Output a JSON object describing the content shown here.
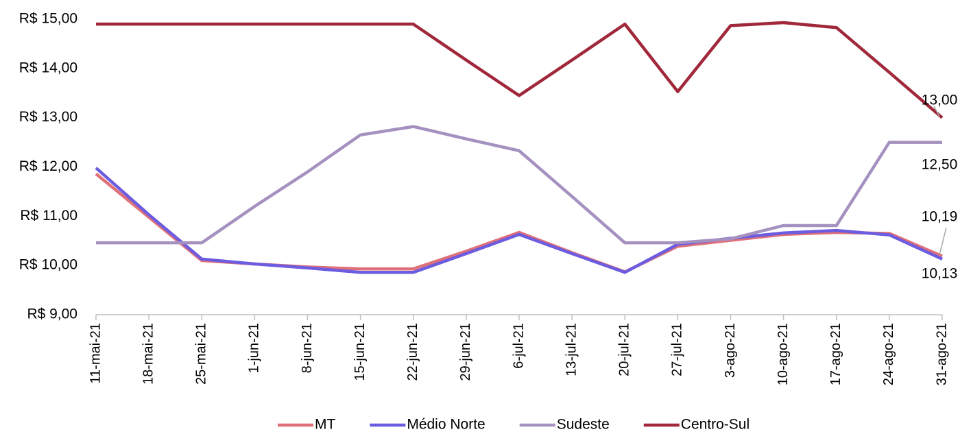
{
  "chart_data": {
    "type": "line",
    "categories": [
      "11-mai-21",
      "18-mai-21",
      "25-mai-21",
      "1-jun-21",
      "8-jun-21",
      "15-jun-21",
      "22-jun-21",
      "29-jun-21",
      "6-jul-21",
      "13-jul-21",
      "20-jul-21",
      "27-jul-21",
      "3-ago-21",
      "10-ago-21",
      "17-ago-21",
      "24-ago-21",
      "31-ago-21"
    ],
    "ylim": [
      9,
      15
    ],
    "yticks": [
      {
        "value": 9,
        "label": "R$ 9,00"
      },
      {
        "value": 10,
        "label": "R$ 10,00"
      },
      {
        "value": 11,
        "label": "R$ 11,00"
      },
      {
        "value": 12,
        "label": "R$ 12,00"
      },
      {
        "value": 13,
        "label": "R$ 13,00"
      },
      {
        "value": 14,
        "label": "R$ 14,00"
      },
      {
        "value": 15,
        "label": "R$ 15,00"
      }
    ],
    "grid": false,
    "legend": "bottom",
    "series": [
      {
        "name": "MT",
        "color": "#e07078",
        "values": [
          11.86,
          10.98,
          10.1,
          10.03,
          9.97,
          9.93,
          9.93,
          10.29,
          10.67,
          10.26,
          9.87,
          10.39,
          10.51,
          10.63,
          10.67,
          10.65,
          10.19
        ],
        "value_labels": [
          null,
          null,
          null,
          null,
          null,
          null,
          null,
          null,
          null,
          null,
          null,
          null,
          null,
          null,
          null,
          null,
          "10,19"
        ]
      },
      {
        "name": "Médio Norte",
        "color": "#6b5ce0",
        "values": [
          11.98,
          11.03,
          10.13,
          10.03,
          9.95,
          9.86,
          9.86,
          10.24,
          10.63,
          10.24,
          9.86,
          10.43,
          10.55,
          10.66,
          10.71,
          10.62,
          10.13
        ],
        "value_labels": [
          null,
          null,
          null,
          null,
          null,
          null,
          null,
          null,
          null,
          null,
          null,
          null,
          null,
          null,
          null,
          null,
          "10,13"
        ]
      },
      {
        "name": "Sudeste",
        "color": "#a491c0",
        "values": [
          10.46,
          10.46,
          10.46,
          11.2,
          11.9,
          12.65,
          12.82,
          12.57,
          12.33,
          11.4,
          10.46,
          10.46,
          10.54,
          10.81,
          10.81,
          12.5,
          12.5
        ],
        "value_labels": [
          null,
          null,
          null,
          null,
          null,
          null,
          null,
          null,
          null,
          null,
          null,
          null,
          null,
          null,
          null,
          null,
          "12,50"
        ]
      },
      {
        "name": "Centro-Sul",
        "color": "#a0283a",
        "values": [
          14.9,
          14.9,
          14.9,
          14.9,
          14.9,
          14.9,
          14.9,
          14.17,
          13.45,
          14.17,
          14.9,
          13.53,
          14.87,
          14.93,
          14.83,
          13.92,
          13.0
        ],
        "value_labels": [
          null,
          null,
          null,
          null,
          null,
          null,
          null,
          null,
          null,
          null,
          null,
          null,
          null,
          null,
          null,
          null,
          "13,00"
        ]
      }
    ]
  }
}
